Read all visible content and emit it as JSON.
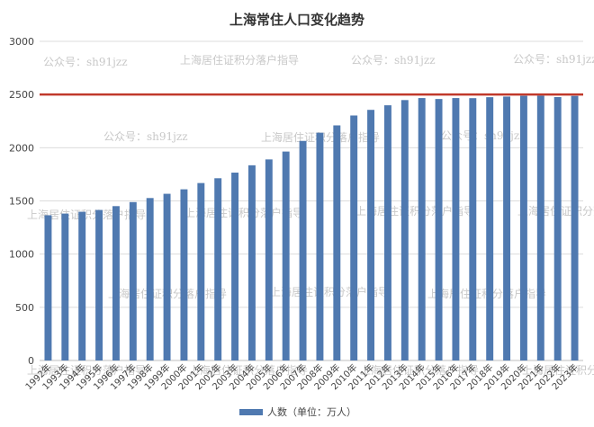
{
  "chart_data": {
    "type": "bar",
    "title": "上海常住人口变化趋势",
    "categories": [
      "1992年",
      "1993年",
      "1994年",
      "1995年",
      "1996年",
      "1997年",
      "1998年",
      "1999年",
      "2000年",
      "2001年",
      "2002年",
      "2003年",
      "2004年",
      "2005年",
      "2006年",
      "2007年",
      "2008年",
      "2009年",
      "2010年",
      "2011年",
      "2012年",
      "2013年",
      "2014年",
      "2015年",
      "2016年",
      "2017年",
      "2018年",
      "2019年",
      "2020年",
      "2021年",
      "2022年",
      "2023年"
    ],
    "series": [
      {
        "name": "人数（单位：万人）",
        "color": "#4f79b0",
        "values": [
          1365,
          1381,
          1398,
          1415,
          1451,
          1489,
          1527,
          1567,
          1609,
          1668,
          1713,
          1766,
          1835,
          1890,
          1964,
          2064,
          2141,
          2210,
          2303,
          2356,
          2399,
          2448,
          2467,
          2458,
          2467,
          2466,
          2475,
          2481,
          2488,
          2489,
          2476,
          2487
        ]
      }
    ],
    "reference_line": {
      "value": 2500,
      "color": "#c0392b"
    },
    "ylim": [
      0,
      3000
    ],
    "yticks": [
      "0",
      "500",
      "1000",
      "1500",
      "2000",
      "2500",
      "3000"
    ],
    "grid": true,
    "legend_position": "bottom"
  },
  "watermarks": [
    "公众号：sh91jzz",
    "上海居住证积分落户指导"
  ]
}
